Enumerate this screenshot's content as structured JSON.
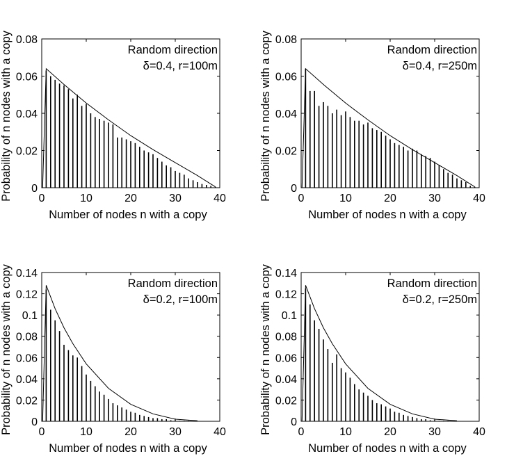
{
  "chart_data": [
    {
      "type": "bar",
      "panel": "top-left",
      "title": "",
      "annotation": [
        "Random direction",
        "δ=0.4, r=100m"
      ],
      "xlabel": "Number of nodes n with a copy",
      "ylabel": "Probability of n nodes with a copy",
      "xlim": [
        0,
        40
      ],
      "ylim": [
        0,
        0.08
      ],
      "xticks": [
        "0",
        "10",
        "20",
        "30",
        "40"
      ],
      "yticks": [
        "0",
        "0.02",
        "0.04",
        "0.06",
        "0.08"
      ],
      "grid": false,
      "x": [
        1,
        2,
        3,
        4,
        5,
        6,
        7,
        8,
        9,
        10,
        11,
        12,
        13,
        14,
        15,
        16,
        17,
        18,
        19,
        20,
        21,
        22,
        23,
        24,
        25,
        26,
        27,
        28,
        29,
        30,
        31,
        32,
        33,
        34,
        35,
        36,
        37,
        38,
        39
      ],
      "values": [
        0.063,
        0.06,
        0.058,
        0.056,
        0.055,
        0.053,
        0.048,
        0.05,
        0.044,
        0.045,
        0.04,
        0.038,
        0.037,
        0.036,
        0.035,
        0.034,
        0.027,
        0.027,
        0.026,
        0.025,
        0.024,
        0.022,
        0.02,
        0.019,
        0.018,
        0.016,
        0.014,
        0.012,
        0.011,
        0.009,
        0.008,
        0.007,
        0.005,
        0.004,
        0.003,
        0.002,
        0.0015,
        0.001,
        0.0005
      ],
      "curve": {
        "type": "theoretical",
        "x": [
          1,
          5,
          10,
          15,
          20,
          25,
          30,
          35,
          38,
          39
        ],
        "y": [
          0.064,
          0.0555,
          0.0455,
          0.0365,
          0.028,
          0.0205,
          0.0135,
          0.0065,
          0.002,
          0.0005
        ]
      }
    },
    {
      "type": "bar",
      "panel": "top-right",
      "title": "",
      "annotation": [
        "Random direction",
        "δ=0.4, r=250m"
      ],
      "xlabel": "Number of nodes n with a copy",
      "ylabel": "Probability of n nodes with a copy",
      "xlim": [
        0,
        40
      ],
      "ylim": [
        0,
        0.08
      ],
      "xticks": [
        "0",
        "10",
        "20",
        "30",
        "40"
      ],
      "yticks": [
        "0",
        "0.02",
        "0.04",
        "0.06",
        "0.08"
      ],
      "grid": false,
      "x": [
        1,
        2,
        3,
        4,
        5,
        6,
        7,
        8,
        9,
        10,
        11,
        12,
        13,
        14,
        15,
        16,
        17,
        18,
        19,
        20,
        21,
        22,
        23,
        24,
        25,
        26,
        27,
        28,
        29,
        30,
        31,
        32,
        33,
        34,
        35,
        36,
        37,
        38,
        39
      ],
      "values": [
        0.064,
        0.052,
        0.052,
        0.044,
        0.046,
        0.044,
        0.04,
        0.042,
        0.039,
        0.041,
        0.038,
        0.036,
        0.036,
        0.034,
        0.035,
        0.032,
        0.031,
        0.03,
        0.028,
        0.026,
        0.024,
        0.023,
        0.022,
        0.02,
        0.021,
        0.02,
        0.018,
        0.017,
        0.016,
        0.014,
        0.012,
        0.01,
        0.008,
        0.007,
        0.005,
        0.004,
        0.003,
        0.001,
        0.0005
      ],
      "curve": {
        "type": "theoretical",
        "x": [
          1,
          5,
          10,
          15,
          20,
          25,
          30,
          35,
          38,
          39
        ],
        "y": [
          0.064,
          0.0555,
          0.0455,
          0.0365,
          0.028,
          0.0205,
          0.0135,
          0.0065,
          0.002,
          0.0005
        ]
      }
    },
    {
      "type": "bar",
      "panel": "bottom-left",
      "title": "",
      "annotation": [
        "Random direction",
        "δ=0.2, r=100m"
      ],
      "xlabel": "Number of nodes n with a copy",
      "ylabel": "Probability of n nodes with a copy",
      "xlim": [
        0,
        40
      ],
      "ylim": [
        0,
        0.14
      ],
      "xticks": [
        "0",
        "10",
        "20",
        "30",
        "40"
      ],
      "yticks": [
        "0",
        "0.02",
        "0.04",
        "0.06",
        "0.08",
        "0.1",
        "0.12",
        "0.14"
      ],
      "grid": false,
      "x": [
        1,
        2,
        3,
        4,
        5,
        6,
        7,
        8,
        9,
        10,
        11,
        12,
        13,
        14,
        15,
        16,
        17,
        18,
        19,
        20,
        21,
        22,
        23,
        24,
        25,
        26,
        27,
        28,
        29,
        30,
        31,
        32,
        33
      ],
      "values": [
        0.124,
        0.105,
        0.095,
        0.085,
        0.072,
        0.067,
        0.062,
        0.06,
        0.052,
        0.044,
        0.038,
        0.033,
        0.028,
        0.025,
        0.021,
        0.017,
        0.015,
        0.013,
        0.011,
        0.009,
        0.008,
        0.006,
        0.005,
        0.004,
        0.003,
        0.003,
        0.002,
        0.002,
        0.001,
        0.001,
        0.0005,
        0.0005,
        0.0005
      ],
      "curve": {
        "type": "theoretical",
        "x": [
          1,
          3,
          5,
          7,
          10,
          15,
          20,
          25,
          30,
          35
        ],
        "y": [
          0.128,
          0.106,
          0.088,
          0.073,
          0.054,
          0.031,
          0.016,
          0.007,
          0.002,
          0.0005
        ]
      }
    },
    {
      "type": "bar",
      "panel": "bottom-right",
      "title": "",
      "annotation": [
        "Random direction",
        "δ=0.2, r=250m"
      ],
      "xlabel": "Number of nodes n with a copy",
      "ylabel": "Probability of n nodes with a copy",
      "xlim": [
        0,
        40
      ],
      "ylim": [
        0,
        0.14
      ],
      "xticks": [
        "0",
        "10",
        "20",
        "30",
        "40"
      ],
      "yticks": [
        "0",
        "0.02",
        "0.04",
        "0.06",
        "0.08",
        "0.1",
        "0.12",
        "0.14"
      ],
      "grid": false,
      "x": [
        1,
        2,
        3,
        4,
        5,
        6,
        7,
        8,
        9,
        10,
        11,
        12,
        13,
        14,
        15,
        16,
        17,
        18,
        19,
        20,
        21,
        22,
        23,
        24,
        25,
        26,
        27,
        28,
        29,
        30,
        31,
        32,
        33
      ],
      "values": [
        0.125,
        0.11,
        0.095,
        0.087,
        0.077,
        0.068,
        0.055,
        0.063,
        0.05,
        0.046,
        0.041,
        0.035,
        0.03,
        0.027,
        0.024,
        0.02,
        0.017,
        0.016,
        0.014,
        0.012,
        0.009,
        0.008,
        0.006,
        0.005,
        0.004,
        0.003,
        0.002,
        0.002,
        0.001,
        0.001,
        0.0005,
        0.0005,
        0.0005
      ],
      "curve": {
        "type": "theoretical",
        "x": [
          1,
          3,
          5,
          7,
          10,
          15,
          20,
          25,
          30,
          35
        ],
        "y": [
          0.128,
          0.106,
          0.088,
          0.073,
          0.054,
          0.031,
          0.016,
          0.007,
          0.002,
          0.0005
        ]
      }
    }
  ]
}
